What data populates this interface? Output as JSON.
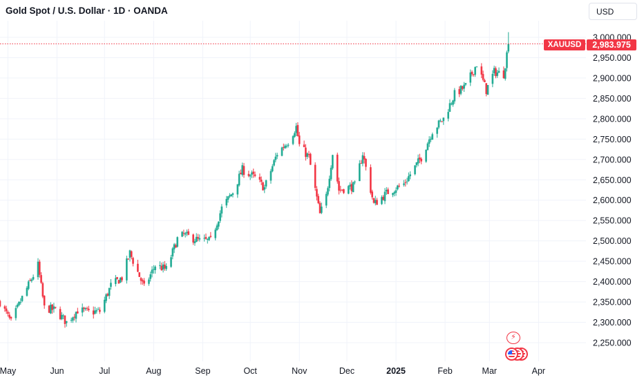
{
  "header": {
    "title": "Gold Spot / U.S. Dollar · 1D · OANDA",
    "currency": "USD"
  },
  "price_scale": {
    "symbol": "XAUUSD",
    "last_price": "2,983.975",
    "ticks": [
      "3,000.000",
      "2,950.000",
      "2,900.000",
      "2,850.000",
      "2,800.000",
      "2,750.000",
      "2,700.000",
      "2,650.000",
      "2,600.000",
      "2,550.000",
      "2,500.000",
      "2,450.000",
      "2,400.000",
      "2,350.000",
      "2,300.000",
      "2,250.000"
    ]
  },
  "colors": {
    "up": "#22ab94",
    "down": "#f23645",
    "grid": "#f0f3fa",
    "last_price_line": "#f23645"
  },
  "icons": {
    "event": "lightning-icon",
    "flags": "us-flag-icon"
  },
  "chart_data": {
    "type": "candlestick",
    "title": "Gold Spot / U.S. Dollar · 1D · OANDA",
    "xlabel": "",
    "ylabel": "",
    "ylim": [
      2225,
      3020
    ],
    "grid": true,
    "x_tick_labels": [
      {
        "label": "May",
        "date": "2024-05-01"
      },
      {
        "label": "Jun",
        "date": "2024-06-01"
      },
      {
        "label": "Jul",
        "date": "2024-07-01"
      },
      {
        "label": "Aug",
        "date": "2024-08-01"
      },
      {
        "label": "Sep",
        "date": "2024-09-01"
      },
      {
        "label": "Oct",
        "date": "2024-10-01"
      },
      {
        "label": "Nov",
        "date": "2024-11-01"
      },
      {
        "label": "Dec",
        "date": "2024-12-01"
      },
      {
        "label": "2025",
        "date": "2025-01-01",
        "bold": true
      },
      {
        "label": "Feb",
        "date": "2025-02-01"
      },
      {
        "label": "Mar",
        "date": "2025-03-01"
      },
      {
        "label": "Apr",
        "date": "2025-04-01"
      }
    ],
    "date_range": [
      "2024-04-26",
      "2025-04-10"
    ],
    "last_value": 2983.975,
    "series": [
      {
        "name": "XAUUSD",
        "points": [
          [
            "2024-04-26",
            2350
          ],
          [
            "2024-05-03",
            2300
          ],
          [
            "2024-05-10",
            2360
          ],
          [
            "2024-05-17",
            2415
          ],
          [
            "2024-05-20",
            2440
          ],
          [
            "2024-05-24",
            2335
          ],
          [
            "2024-05-31",
            2330
          ],
          [
            "2024-06-07",
            2300
          ],
          [
            "2024-06-14",
            2330
          ],
          [
            "2024-06-21",
            2325
          ],
          [
            "2024-06-28",
            2327
          ],
          [
            "2024-07-05",
            2390
          ],
          [
            "2024-07-12",
            2410
          ],
          [
            "2024-07-17",
            2470
          ],
          [
            "2024-07-26",
            2385
          ],
          [
            "2024-08-02",
            2440
          ],
          [
            "2024-08-09",
            2430
          ],
          [
            "2024-08-16",
            2505
          ],
          [
            "2024-08-20",
            2515
          ],
          [
            "2024-08-30",
            2500
          ],
          [
            "2024-09-06",
            2500
          ],
          [
            "2024-09-13",
            2580
          ],
          [
            "2024-09-20",
            2620
          ],
          [
            "2024-09-26",
            2675
          ],
          [
            "2024-10-04",
            2655
          ],
          [
            "2024-10-10",
            2630
          ],
          [
            "2024-10-18",
            2715
          ],
          [
            "2024-10-25",
            2745
          ],
          [
            "2024-10-30",
            2780
          ],
          [
            "2024-11-01",
            2735
          ],
          [
            "2024-11-07",
            2705
          ],
          [
            "2024-11-14",
            2565
          ],
          [
            "2024-11-18",
            2610
          ],
          [
            "2024-11-22",
            2715
          ],
          [
            "2024-11-26",
            2625
          ],
          [
            "2024-12-06",
            2635
          ],
          [
            "2024-12-11",
            2715
          ],
          [
            "2024-12-18",
            2590
          ],
          [
            "2024-12-27",
            2620
          ],
          [
            "2025-01-06",
            2640
          ],
          [
            "2025-01-17",
            2705
          ],
          [
            "2025-01-24",
            2770
          ],
          [
            "2025-01-31",
            2800
          ],
          [
            "2025-02-07",
            2860
          ],
          [
            "2025-02-14",
            2880
          ],
          [
            "2025-02-21",
            2935
          ],
          [
            "2025-02-27",
            2870
          ],
          [
            "2025-03-04",
            2915
          ],
          [
            "2025-03-10",
            2910
          ],
          [
            "2025-03-13",
            2983.975
          ]
        ]
      }
    ]
  }
}
